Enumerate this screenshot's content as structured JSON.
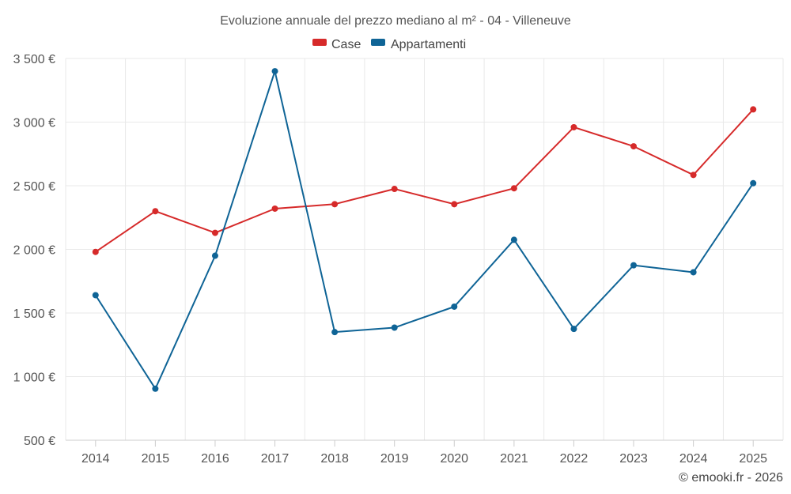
{
  "chart_data": {
    "type": "line",
    "title": "Evoluzione annuale del prezzo mediano al m² - 04 - Villeneuve",
    "categories": [
      "2014",
      "2015",
      "2016",
      "2017",
      "2018",
      "2019",
      "2020",
      "2021",
      "2022",
      "2023",
      "2024",
      "2025"
    ],
    "series": [
      {
        "name": "Case",
        "color": "#d62a2a",
        "values": [
          1980,
          2300,
          2130,
          2320,
          2355,
          2475,
          2355,
          2480,
          2960,
          2810,
          2585,
          3100
        ]
      },
      {
        "name": "Appartamenti",
        "color": "#0f6496",
        "values": [
          1640,
          905,
          1950,
          3400,
          1350,
          1385,
          1550,
          2075,
          1375,
          1875,
          1820,
          2520
        ]
      }
    ],
    "ylim": [
      500,
      3500
    ],
    "yticks": [
      500,
      1000,
      1500,
      2000,
      2500,
      3000,
      3500
    ],
    "ytick_labels": [
      "500 €",
      "1 000 €",
      "1 500 €",
      "2 000 €",
      "2 500 €",
      "3 000 €",
      "3 500 €"
    ],
    "xlabel": "",
    "ylabel": "",
    "grid": true,
    "legend_position": "top-center"
  },
  "credit": "© emooki.fr - 2026"
}
